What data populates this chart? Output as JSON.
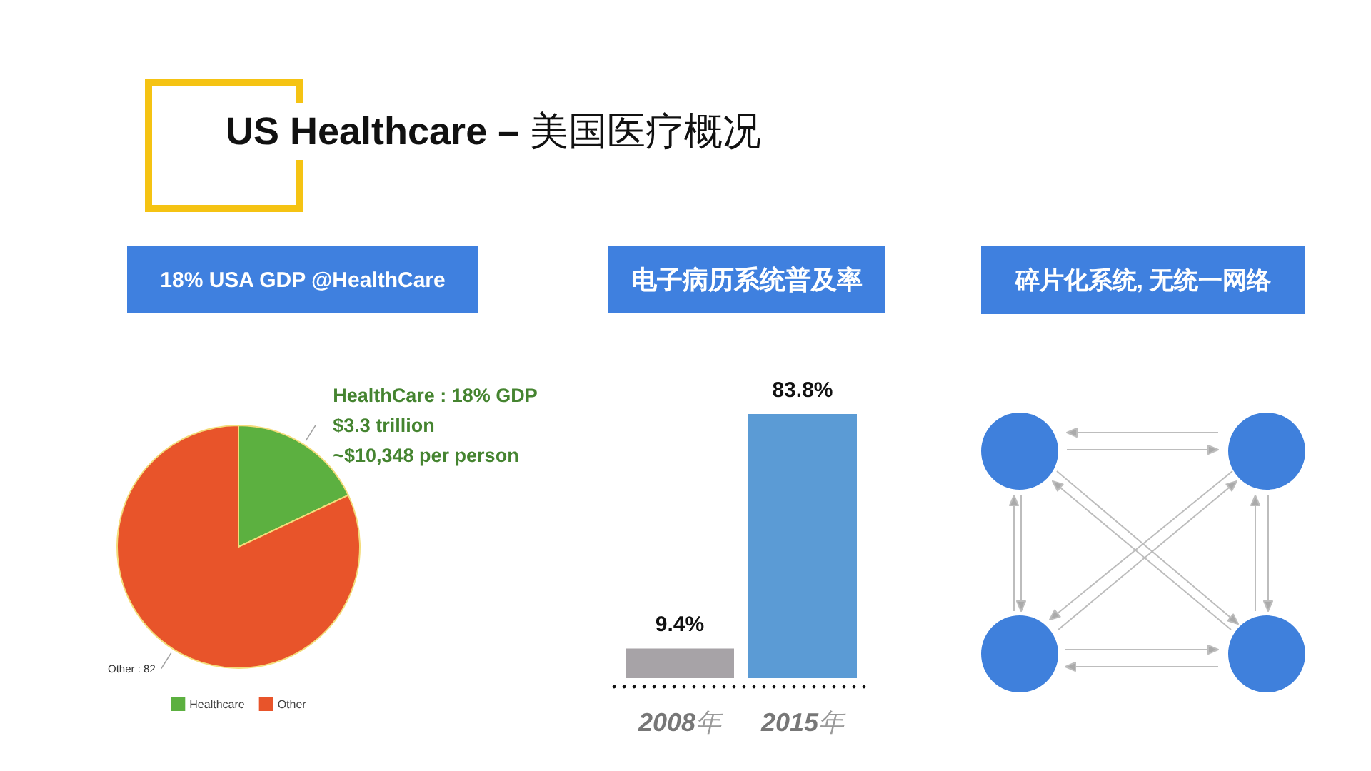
{
  "chart_data": [
    {
      "type": "other",
      "title": "US Healthcare – 美国医疗概况"
    },
    {
      "type": "pie",
      "title": "18% USA GDP @HealthCare",
      "categories": [
        "Healthcare",
        "Other"
      ],
      "values": [
        18,
        82
      ],
      "colors": [
        "#5cb040",
        "#e8542a"
      ],
      "value_labels": [
        "HealthCare : 18% GDP\n$3.3 trillion\n~$10,348 per person",
        "Other : 82"
      ],
      "legend": "bottom"
    },
    {
      "type": "bar",
      "title": "电子病历系统普及率",
      "categories": [
        "2008年",
        "2015年"
      ],
      "values": [
        9.4,
        83.8
      ],
      "colors": [
        "#a7a3a7",
        "#5b9bd5"
      ],
      "value_labels": [
        "9.4%",
        "83.8%"
      ]
    },
    {
      "type": "other",
      "title": "碎片化系统, 无统一网络"
    }
  ]
}
